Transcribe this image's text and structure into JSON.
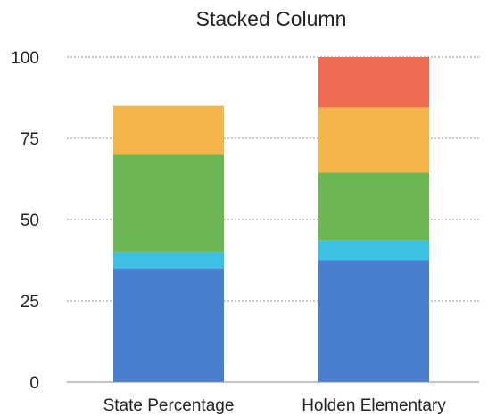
{
  "chart_data": {
    "type": "bar",
    "stacked": true,
    "title": "Stacked Column",
    "xlabel": "",
    "ylabel": "",
    "categories": [
      "State Percentage",
      "Holden Elementary"
    ],
    "ylim": [
      0,
      100
    ],
    "yticks": [
      0,
      25,
      50,
      75,
      100
    ],
    "grid": true,
    "series": [
      {
        "color": "#4a7fd0",
        "values": [
          35,
          37.5
        ]
      },
      {
        "color": "#3cc0e4",
        "values": [
          5,
          6
        ]
      },
      {
        "color": "#6db654",
        "values": [
          30,
          21
        ]
      },
      {
        "color": "#f6b54a",
        "values": [
          15,
          20
        ]
      },
      {
        "color": "#ee6a52",
        "values": [
          0,
          15.5
        ]
      }
    ]
  }
}
